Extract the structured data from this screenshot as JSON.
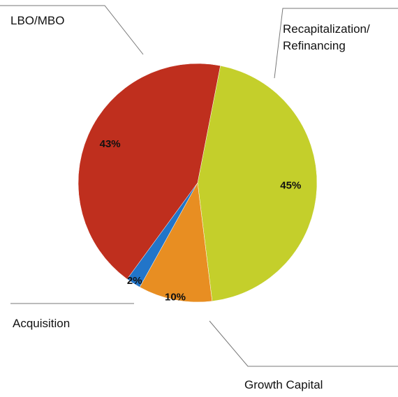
{
  "chart_data": {
    "type": "pie",
    "categories": [
      "Recapitalization/ Refinancing",
      "Growth Capital",
      "Acquisition",
      "LBO/MBO"
    ],
    "values": [
      45,
      10,
      2,
      43
    ],
    "value_labels": [
      "45%",
      "10%",
      "2%",
      "43%"
    ],
    "colors": [
      "#c4cf2b",
      "#e88e22",
      "#2275c9",
      "#bf2f1e"
    ]
  }
}
